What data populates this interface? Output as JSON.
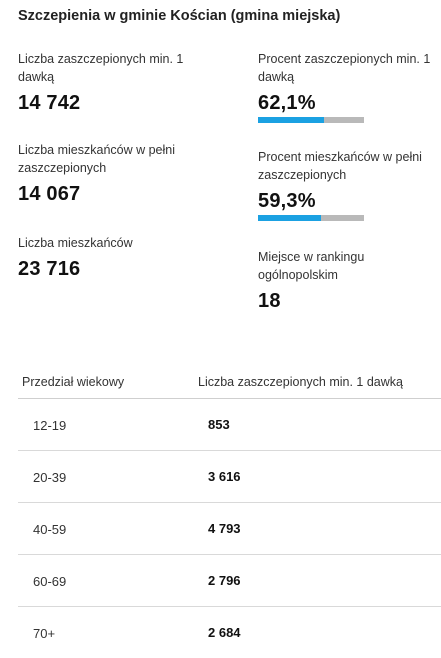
{
  "title": "Szczepienia w gminie Kościan (gmina miejska)",
  "stats": {
    "vaccinated_one_dose": {
      "label": "Liczba zaszczepionych min. 1 dawką",
      "value": "14 742"
    },
    "percent_one_dose": {
      "label": "Procent zaszczepionych min. 1 dawką",
      "value": "62,1%",
      "fraction": 0.621
    },
    "fully_vaccinated": {
      "label": "Liczba mieszkańców w pełni zaszczepionych",
      "value": "14 067"
    },
    "percent_fully": {
      "label": "Procent mieszkańców w pełni zaszczepionych",
      "value": "59,3%",
      "fraction": 0.593
    },
    "residents": {
      "label": "Liczba mieszkańców",
      "value": "23 716"
    },
    "ranking": {
      "label": "Miejsce w rankingu ogólnopolskim",
      "value": "18"
    }
  },
  "colors": {
    "bar_fill": "#1ba1e2",
    "bar_track": "#b9b9b9"
  },
  "table": {
    "headers": [
      "Przedział wiekowy",
      "Liczba zaszczepionych min. 1 dawką"
    ],
    "rows": [
      {
        "age": "12-19",
        "count": "853"
      },
      {
        "age": "20-39",
        "count": "3 616"
      },
      {
        "age": "40-59",
        "count": "4 793"
      },
      {
        "age": "60-69",
        "count": "2 796"
      },
      {
        "age": "70+",
        "count": "2 684"
      }
    ]
  }
}
